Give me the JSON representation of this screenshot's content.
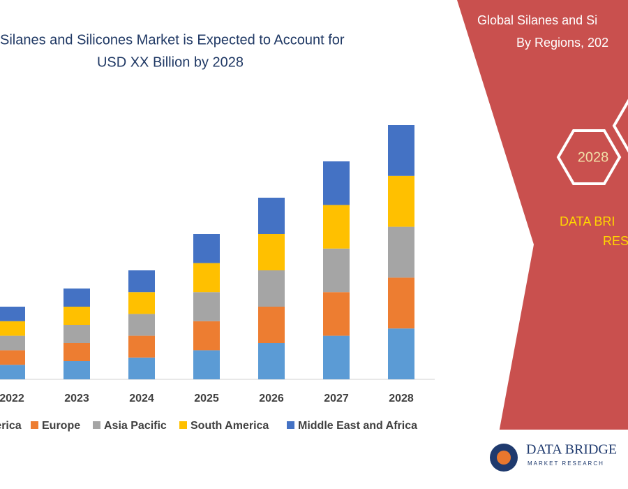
{
  "chart_data": {
    "type": "stacked-bar",
    "title": [
      "Silanes and Silicones Market is Expected to Account for",
      "USD XX Billion by 2028"
    ],
    "categories": [
      "2022",
      "2023",
      "2024",
      "2025",
      "2026",
      "2027",
      "2028"
    ],
    "series": [
      {
        "name": "North America",
        "color": "#5b9bd5",
        "values": [
          4,
          5,
          6,
          8,
          10,
          12,
          14
        ]
      },
      {
        "name": "Europe",
        "color": "#ed7d31",
        "values": [
          4,
          5,
          6,
          8,
          10,
          12,
          14
        ]
      },
      {
        "name": "Asia Pacific",
        "color": "#a5a5a5",
        "values": [
          4,
          5,
          6,
          8,
          10,
          12,
          14
        ]
      },
      {
        "name": "South America",
        "color": "#ffc000",
        "values": [
          4,
          5,
          6,
          8,
          10,
          12,
          14
        ]
      },
      {
        "name": "Middle East and Africa",
        "color": "#4472c4",
        "values": [
          4,
          5,
          6,
          8,
          10,
          12,
          14
        ]
      }
    ],
    "ylim": [
      0,
      70
    ],
    "legend": "bottom"
  },
  "panel": {
    "heading": [
      "Global Silanes and Si",
      "By Regions, 202"
    ],
    "hexagon": "2028",
    "brand": [
      "DATA BRI",
      "RES"
    ],
    "logo": [
      "DATA BRIDGE",
      "MARKET RESEARCH"
    ]
  }
}
